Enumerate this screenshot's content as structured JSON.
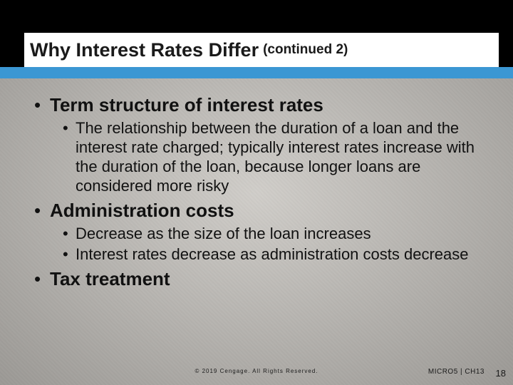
{
  "colors": {
    "banner": "#000000",
    "strip": "#3b97d3",
    "title_bg": "#ffffff",
    "text": "#1a1a1a",
    "paper": "#c8c5c0"
  },
  "title": {
    "main": "Why Interest Rates Differ",
    "continued": "(continued 2)"
  },
  "bullets": [
    {
      "text": "Term structure of interest rates",
      "sub": [
        {
          "text": "The relationship between the duration of a loan and the interest rate charged; typically interest rates increase with the duration of the loan, because longer loans are considered more risky"
        }
      ]
    },
    {
      "text": "Administration costs",
      "sub": [
        {
          "text": "Decrease as the size of the loan increases"
        },
        {
          "text": "Interest rates decrease as administration costs decrease"
        }
      ]
    },
    {
      "text": "Tax treatment",
      "sub": []
    }
  ],
  "footer": {
    "copyright": "© 2019 Cengage. All Rights Reserved.",
    "chapter": "MICRO5 | CH13",
    "page": "18"
  }
}
